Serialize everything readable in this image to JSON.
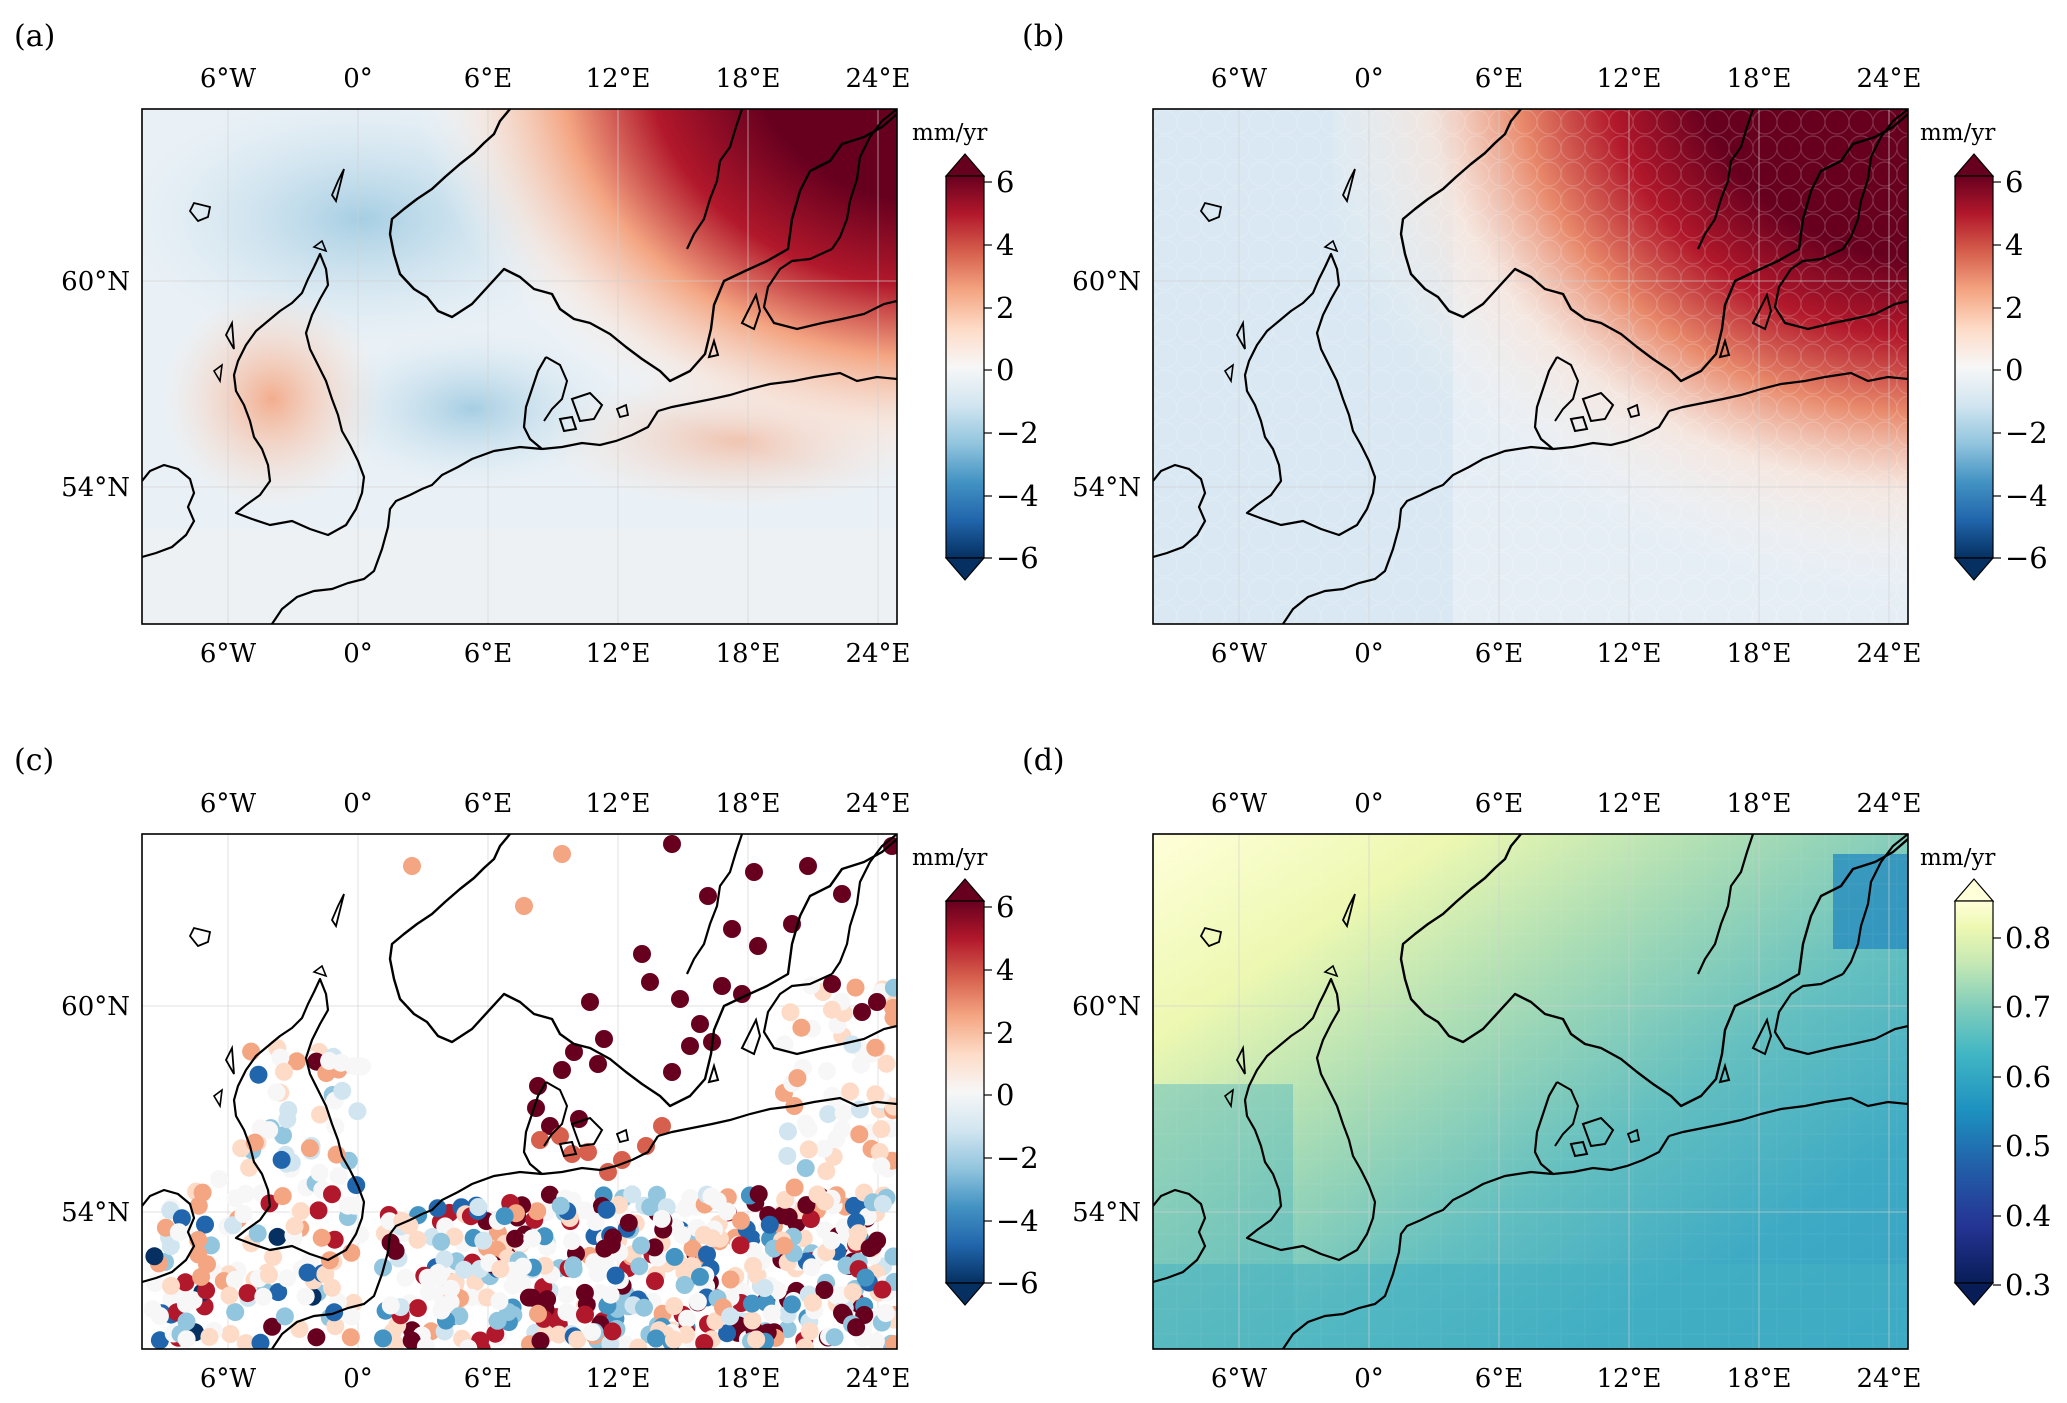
{
  "colorbar_unit": "mm/yr",
  "lon_ticks": [
    "6°W",
    "0°",
    "6°E",
    "12°E",
    "18°E",
    "24°E"
  ],
  "lat_ticks": [
    "60°N",
    "54°N"
  ],
  "div_ticks": [
    "6",
    "4",
    "2",
    "0",
    "−2",
    "−4",
    "−6"
  ],
  "seq_ticks": [
    "0.8",
    "0.7",
    "0.6",
    "0.5",
    "0.4",
    "0.3"
  ],
  "colors": {
    "diverging": [
      "#053061",
      "#2166ac",
      "#4393c3",
      "#92c5de",
      "#d1e5f0",
      "#f7f7f7",
      "#fddbc7",
      "#f4a582",
      "#d6604d",
      "#b2182b",
      "#67001f"
    ],
    "sequential": [
      "#081d58",
      "#253494",
      "#225ea8",
      "#1d91c0",
      "#41b6c4",
      "#7fcdbb",
      "#c7e9b4",
      "#edf8b1",
      "#ffffd9"
    ]
  },
  "panels": [
    {
      "id": "a",
      "label": "(a)",
      "kind": "smooth-field",
      "colormap": "RdBu_r",
      "range": [
        -6,
        6
      ]
    },
    {
      "id": "b",
      "label": "(b)",
      "kind": "gridded-field",
      "colormap": "RdBu_r",
      "range": [
        -6,
        6
      ]
    },
    {
      "id": "c",
      "label": "(c)",
      "kind": "station-points",
      "colormap": "RdBu_r",
      "range": [
        -6,
        6
      ]
    },
    {
      "id": "d",
      "label": "(d)",
      "kind": "gridded-field",
      "colormap": "YlGnBu_r",
      "range": [
        0.3,
        0.85
      ]
    }
  ]
}
